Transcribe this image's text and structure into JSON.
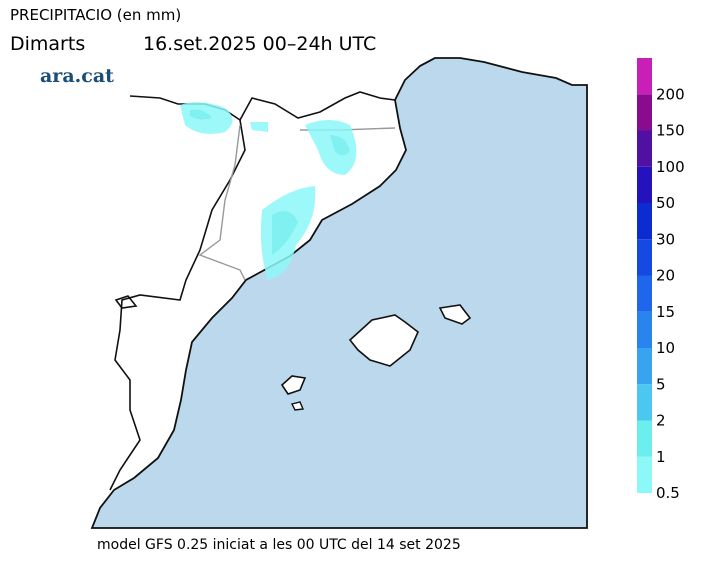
{
  "header": {
    "title": "PRECIPITACIO (en mm)",
    "day": "Dimarts",
    "date": "16.set.2025 00–24h UTC",
    "brand": "ara.cat"
  },
  "legend": {
    "levels": [
      0.5,
      1,
      2,
      5,
      10,
      15,
      20,
      30,
      50,
      100,
      150,
      200
    ],
    "colors": [
      "#8cf8f8",
      "#6ceeee",
      "#4cc8f0",
      "#38a4f0",
      "#2a84ee",
      "#1e66ec",
      "#1648e2",
      "#0c2cd0",
      "#2412bc",
      "#5010a2",
      "#8a0c8e",
      "#c820b6"
    ]
  },
  "footer": "model GFS 0.25 iniciat a les 00 UTC del 14 set 2025"
}
